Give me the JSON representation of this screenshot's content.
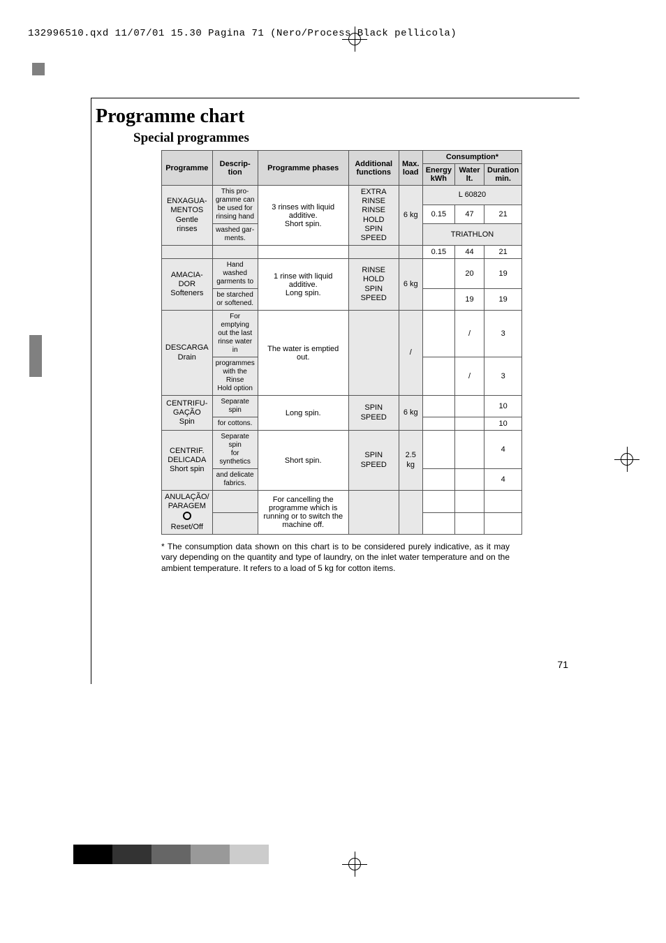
{
  "header_line": "132996510.qxd  11/07/01  15.30  Pagina  71     (Nero/Process Black pellicola)",
  "title": "Programme chart",
  "subtitle": "Special programmes",
  "headers": {
    "programme": "Programme",
    "description": "Descrip-\ntion",
    "phases": "Programme phases",
    "additional": "Additional\nfunctions",
    "maxload": "Max.\nload",
    "consumption": "Consumption*",
    "energy": "Energy\nkWh",
    "water": "Water\nlt.",
    "duration": "Duration\nmin."
  },
  "model_row": "L 60820",
  "triathlon": "TRIATHLON",
  "rows": [
    {
      "prog": "ENXAGUA-\nMENTOS\nGentle\nrinses",
      "desc_a": "This pro-\ngramme can\nbe used for\nrinsing hand",
      "desc_b": "washed gar-\nments.",
      "phase": "3 rinses with liquid additive.\nShort spin.",
      "add": "EXTRA RINSE\nRINSE HOLD\nSPIN SPEED",
      "load": "6 kg",
      "e1": "0.15",
      "w1": "47",
      "d1": "21",
      "e2": "0.15",
      "w2": "44",
      "d2": "21"
    },
    {
      "prog": "AMACIA-\nDOR\nSofteners",
      "desc_a": "Hand washed\ngarments to",
      "desc_b": "be starched\nor softened.",
      "phase": "1 rinse with liquid additive.\nLong spin.",
      "add": "RINSE HOLD\nSPIN SPEED",
      "load": "6 kg",
      "e1": "",
      "w1": "20",
      "d1": "19",
      "e2": "",
      "w2": "19",
      "d2": "19"
    },
    {
      "prog": "DESCARGA\nDrain",
      "desc_a": "For emptying\nout the last\nrinse water in",
      "desc_b": "programmes\nwith the Rinse\nHold option",
      "phase": "The water is emptied out.",
      "add": "",
      "load": "/",
      "e1": "",
      "w1": "/",
      "d1": "3",
      "e2": "",
      "w2": "/",
      "d2": "3"
    },
    {
      "prog": "CENTRIFU-\nGAÇÃO\nSpin",
      "desc_a": "Separate spin",
      "desc_b": "for cottons.",
      "phase": "Long spin.",
      "add": "SPIN SPEED",
      "load": "6 kg",
      "e1": "",
      "w1": "",
      "d1": "10",
      "e2": "",
      "w2": "",
      "d2": "10"
    },
    {
      "prog": "CENTRIF.\nDELICADA\nShort spin",
      "desc_a": "Separate spin\nfor synthetics",
      "desc_b": "and delicate\nfabrics.",
      "phase": "Short spin.",
      "add": "SPIN SPEED",
      "load": "2.5 kg",
      "e1": "",
      "w1": "",
      "d1": "4",
      "e2": "",
      "w2": "",
      "d2": "4"
    },
    {
      "prog": "ANULAÇÃO/\nPARAGEM\n\nReset/Off",
      "desc_a": "",
      "desc_b": "",
      "phase": "For cancelling the programme which is running or to switch the machine off.",
      "add": "",
      "load": "",
      "e1": "",
      "w1": "",
      "d1": "",
      "e2": "",
      "w2": "",
      "d2": ""
    }
  ],
  "footnote": "* The consumption data shown on this chart is to be considered purely indicative, as it may vary depending on the quantity and type of laundry, on the inlet water temperature and on the ambient temperature. It refers to a load of 5 kg for cotton items.",
  "page_number": "71",
  "cmyk_colors": [
    "#000000",
    "#000000",
    "#333333",
    "#333333",
    "#666666",
    "#666666",
    "#999999",
    "#999999",
    "#cccccc",
    "#cccccc"
  ]
}
